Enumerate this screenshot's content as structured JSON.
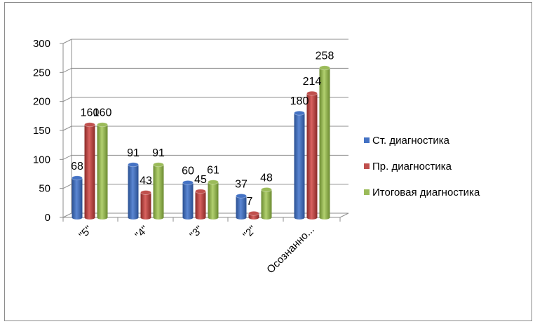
{
  "chart_data": {
    "type": "bar",
    "title": "",
    "xlabel": "",
    "ylabel": "",
    "categories": [
      "\"5\"",
      "\"4\"",
      "\"3\"",
      "\"2\"",
      "Осознанно..."
    ],
    "ylim": [
      0,
      300
    ],
    "yticks": [
      "0",
      "50",
      "100",
      "150",
      "200",
      "250",
      "300"
    ],
    "grid": true,
    "legend": "right",
    "series": [
      {
        "name": "Ст. диагностика",
        "values": [
          68,
          91,
          60,
          37,
          180
        ],
        "color": "#4472C4"
      },
      {
        "name": "Пр. диагностика",
        "values": [
          160,
          43,
          45,
          7,
          214
        ],
        "color": "#C0504D"
      },
      {
        "name": "Итоговая диагностика",
        "values": [
          160,
          91,
          61,
          48,
          258
        ],
        "color": "#9BBB59"
      }
    ]
  }
}
